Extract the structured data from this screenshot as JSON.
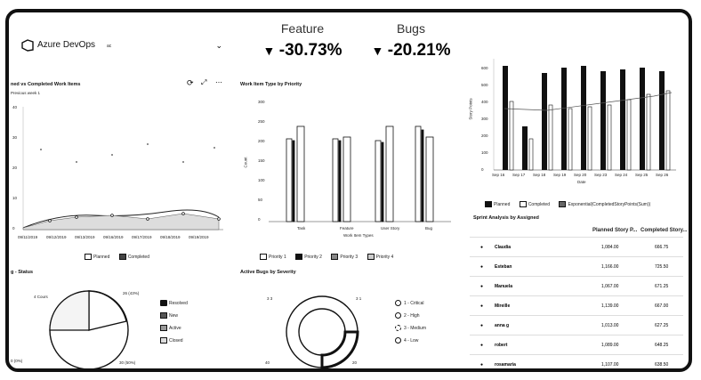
{
  "header": {
    "logo_text": "Azure DevOps",
    "selector_value": "ac"
  },
  "kpi": [
    {
      "label": "Feature",
      "value": "-30.73%"
    },
    {
      "label": "Bugs",
      "value": "-20.21%"
    }
  ],
  "widgets": {
    "burn": {
      "title": "ned vs Completed Work Items",
      "subtitle": "Previous week 1",
      "y_ticks": [
        "40",
        "30",
        "20",
        "10",
        "0"
      ],
      "x_ticks": [
        "09/11/2019",
        "09/12/2019",
        "09/13/2019",
        "09/16/2019",
        "09/17/2019",
        "09/18/2019",
        "09/19/2019"
      ],
      "legend": [
        "Planned",
        "Completed"
      ]
    },
    "priority": {
      "title": "Work Item Type by Priority",
      "y_label": "Count",
      "x_label": "Work Item Types",
      "y_ticks": [
        "300",
        "250",
        "200",
        "150",
        "100",
        "50",
        "0"
      ],
      "categories": [
        "Task",
        "Feature",
        "User Story",
        "Bug"
      ],
      "legend": [
        "Priority 1",
        "Priority 2",
        "Priority 3",
        "Priority 4"
      ]
    },
    "story": {
      "y_label": "Story Points",
      "y_ticks": [
        "600",
        "500",
        "400",
        "300",
        "200",
        "100",
        "0"
      ],
      "x_ticks": [
        "Sep 16",
        "Sep 17",
        "Sep 18",
        "Sep 19",
        "Sep 20",
        "Sep 23",
        "Sep 24",
        "Sep 25",
        "Sep 26"
      ],
      "x_label": "Date",
      "legend": [
        "Planned",
        "Completed",
        "Exponential(CompletedStoryPoints(Sum))"
      ]
    },
    "status": {
      "title": "g - Status",
      "left_label": "4 Cours",
      "right_label": "26 (43%)",
      "bottom_left": "0 (0%)",
      "bottom_right": "30 (50%)",
      "legend": [
        "Resolved",
        "New",
        "Active",
        "Closed"
      ]
    },
    "bugs": {
      "title": "Active Bugs by Severity",
      "left_label": "3 3",
      "right_label": "3 1",
      "bottom_left": "40",
      "bottom_right": "20",
      "legend": [
        "1 - Critical",
        "2 - High",
        "3 - Medium",
        "4 - Low"
      ]
    },
    "sprint": {
      "title": "Sprint Analysis by Assigned",
      "col1": "Planned Story P...",
      "col2": "Completed Story...",
      "rows": [
        {
          "name": "Claudia",
          "planned": "1,084.00",
          "completed": "666.75"
        },
        {
          "name": "Esteban",
          "planned": "1,166.00",
          "completed": "725.50"
        },
        {
          "name": "Manuela",
          "planned": "1,067.00",
          "completed": "671.25"
        },
        {
          "name": "Mireille",
          "planned": "1,139.00",
          "completed": "667.00"
        },
        {
          "name": "anna g",
          "planned": "1,013.00",
          "completed": "627.25"
        },
        {
          "name": "robert",
          "planned": "1,089.00",
          "completed": "648.25"
        },
        {
          "name": "rosamaria",
          "planned": "1,107.00",
          "completed": "638.50"
        }
      ]
    }
  }
}
